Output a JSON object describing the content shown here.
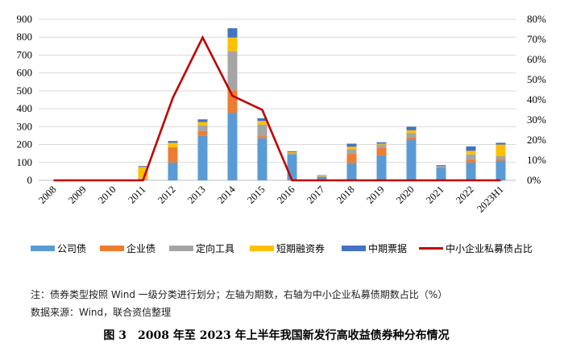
{
  "chart_data": {
    "type": "bar",
    "stacked": true,
    "categories": [
      "2008",
      "2009",
      "2010",
      "2011",
      "2012",
      "2013",
      "2014",
      "2015",
      "2016",
      "2017",
      "2018",
      "2019",
      "2020",
      "2021",
      "2022",
      "2023H1"
    ],
    "series": [
      {
        "name": "公司债",
        "color": "#5B9BD5",
        "axis": "left",
        "values": [
          0,
          0,
          0,
          0,
          100,
          248,
          378,
          235,
          145,
          18,
          98,
          140,
          225,
          70,
          100,
          110
        ]
      },
      {
        "name": "企业债",
        "color": "#ED7D31",
        "axis": "left",
        "values": [
          0,
          0,
          0,
          0,
          85,
          28,
          125,
          12,
          0,
          0,
          50,
          40,
          15,
          0,
          15,
          10
        ]
      },
      {
        "name": "定向工具",
        "color": "#A5A5A5",
        "axis": "left",
        "values": [
          0,
          0,
          0,
          10,
          0,
          30,
          220,
          65,
          8,
          5,
          25,
          20,
          25,
          10,
          30,
          15
        ]
      },
      {
        "name": "短期融资券",
        "color": "#FFC000",
        "axis": "left",
        "values": [
          0,
          0,
          0,
          65,
          25,
          20,
          75,
          20,
          5,
          5,
          15,
          5,
          15,
          0,
          20,
          65
        ]
      },
      {
        "name": "中期票据",
        "color": "#4472C4",
        "axis": "left",
        "values": [
          0,
          0,
          0,
          5,
          10,
          15,
          52,
          15,
          5,
          2,
          17,
          8,
          20,
          5,
          25,
          10
        ]
      }
    ],
    "line_series": {
      "name": "中小企业私募债占比",
      "color": "#C00000",
      "axis": "right",
      "values": [
        0,
        0,
        0,
        0,
        41,
        71,
        42,
        35,
        0,
        0,
        0,
        0,
        0,
        0,
        0,
        0
      ]
    },
    "left_axis": {
      "ylim": [
        0,
        900
      ],
      "ticks": [
        "0",
        "100",
        "200",
        "300",
        "400",
        "500",
        "600",
        "700",
        "800",
        "900"
      ]
    },
    "right_axis": {
      "ylim": [
        0,
        80
      ],
      "ticks": [
        "0%",
        "10%",
        "20%",
        "30%",
        "40%",
        "50%",
        "60%",
        "70%",
        "80%"
      ]
    },
    "legend_position": "bottom"
  },
  "note": "注：债券类型按照 Wind 一级分类进行划分；左轴为期数，右轴为中小企业私募债期数占比（%）",
  "source": "数据来源：Wind，联合资信整理",
  "caption": {
    "number": "图 3",
    "title": "2008 年至 2023 年上半年我国新发行高收益债券种分布情况"
  }
}
